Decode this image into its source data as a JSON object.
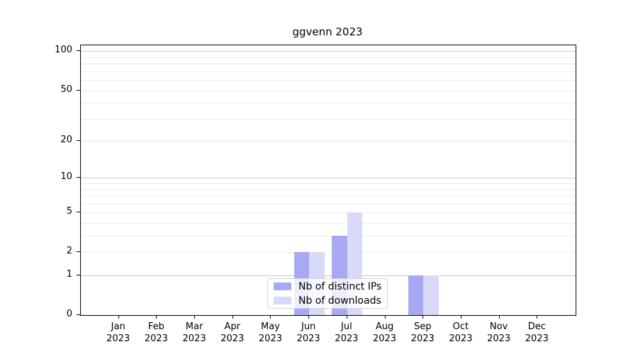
{
  "chart_data": {
    "type": "bar",
    "title": "ggvenn 2023",
    "yscale": "log1p",
    "ylim": [
      0,
      110
    ],
    "yticks": [
      0,
      1,
      2,
      5,
      10,
      20,
      50,
      100
    ],
    "categories": [
      {
        "month": "Jan",
        "year": "2023"
      },
      {
        "month": "Feb",
        "year": "2023"
      },
      {
        "month": "Mar",
        "year": "2023"
      },
      {
        "month": "Apr",
        "year": "2023"
      },
      {
        "month": "May",
        "year": "2023"
      },
      {
        "month": "Jun",
        "year": "2023"
      },
      {
        "month": "Jul",
        "year": "2023"
      },
      {
        "month": "Aug",
        "year": "2023"
      },
      {
        "month": "Sep",
        "year": "2023"
      },
      {
        "month": "Oct",
        "year": "2023"
      },
      {
        "month": "Nov",
        "year": "2023"
      },
      {
        "month": "Dec",
        "year": "2023"
      }
    ],
    "series": [
      {
        "name": "Nb of distinct IPs",
        "color": "#a7a9f4",
        "values": [
          0,
          0,
          0,
          0,
          0,
          2,
          3,
          0,
          1,
          0,
          0,
          0
        ]
      },
      {
        "name": "Nb of downloads",
        "color": "#d9dafa",
        "values": [
          0,
          0,
          0,
          0,
          0,
          2,
          5,
          0,
          1,
          0,
          0,
          0
        ]
      }
    ],
    "grid": {
      "major_values": [
        1,
        10,
        100
      ],
      "major_color": "#c9c9c9",
      "minor_color": "#ececec"
    },
    "legend_position": "lower center"
  }
}
